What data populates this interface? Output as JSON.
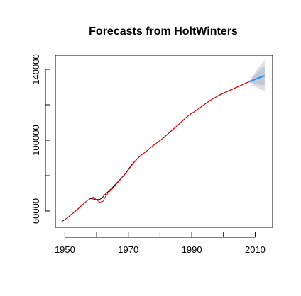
{
  "chart_data": {
    "type": "line",
    "title": "Forecasts from HoltWinters",
    "xlabel": "",
    "ylabel": "",
    "xlim": [
      1947,
      2015.5
    ],
    "ylim": [
      50800,
      148000
    ],
    "x_ticks": [
      1950,
      1960,
      1970,
      1980,
      1990,
      2000,
      2010
    ],
    "x_tick_labels": [
      "1950",
      "",
      "1970",
      "",
      "1990",
      "",
      "2010"
    ],
    "y_ticks": [
      60000,
      80000,
      100000,
      120000,
      140000
    ],
    "y_tick_labels": [
      "60000",
      "",
      "100000",
      "",
      "140000"
    ],
    "grid": false,
    "legend": "none",
    "colors": {
      "observed": "#000000",
      "fitted": "#ff0000",
      "forecast": "#1f8fe6",
      "band80": "#c3c7d6",
      "band95": "#dcdde3"
    },
    "series": [
      {
        "role": "observed",
        "x": [
          1949,
          1950,
          1951,
          1952,
          1953,
          1954,
          1955,
          1956,
          1957,
          1958,
          1959,
          1960,
          1961,
          1962,
          1963,
          1964,
          1965,
          1966,
          1967,
          1968,
          1969,
          1970,
          1971,
          1972,
          1973,
          1974,
          1975,
          1976,
          1977,
          1978,
          1979,
          1980,
          1981,
          1982,
          1983,
          1984,
          1985,
          1986,
          1987,
          1988,
          1989,
          1990,
          1991,
          1992,
          1993,
          1994,
          1995,
          1996,
          1997,
          1998,
          1999,
          2000,
          2001,
          2002,
          2003,
          2004,
          2005,
          2006,
          2007,
          2008
        ],
        "y": [
          54000,
          55200,
          56500,
          58000,
          59500,
          61000,
          62700,
          64300,
          65800,
          67000,
          66800,
          66500,
          66500,
          68000,
          70000,
          71500,
          73300,
          75200,
          77000,
          79000,
          81000,
          83500,
          86000,
          88000,
          89800,
          91500,
          92800,
          94200,
          95800,
          97200,
          98500,
          99800,
          101200,
          102800,
          104400,
          106000,
          107600,
          109200,
          110800,
          112500,
          114000,
          115200,
          116300,
          117600,
          118900,
          120200,
          121500,
          122700,
          123800,
          124800,
          125700,
          126600,
          127400,
          128200,
          129000,
          129800,
          130600,
          131400,
          132200,
          133000
        ]
      },
      {
        "role": "fitted",
        "x": [
          1950,
          1951,
          1952,
          1953,
          1954,
          1955,
          1956,
          1957,
          1958,
          1959,
          1960,
          1961,
          1962,
          1963,
          1964,
          1965,
          1966,
          1967,
          1968,
          1969,
          1970,
          1971,
          1972,
          1973,
          1974,
          1975,
          1976,
          1977,
          1978,
          1979,
          1980,
          1981,
          1982,
          1983,
          1984,
          1985,
          1986,
          1987,
          1988,
          1989,
          1990,
          1991,
          1992,
          1993,
          1994,
          1995,
          1996,
          1997,
          1998,
          1999,
          2000,
          2001,
          2002,
          2003,
          2004,
          2005,
          2006,
          2007,
          2008
        ],
        "y": [
          55100,
          56400,
          57900,
          59400,
          61000,
          62600,
          64200,
          65800,
          67200,
          67800,
          66300,
          65000,
          65500,
          68800,
          70800,
          72600,
          74800,
          76700,
          78800,
          80800,
          83100,
          85600,
          87800,
          89700,
          91400,
          92800,
          94100,
          95700,
          97100,
          98500,
          99800,
          101100,
          102700,
          104300,
          105900,
          107500,
          109100,
          110700,
          112400,
          113900,
          115200,
          116300,
          117500,
          118800,
          120100,
          121400,
          122600,
          123700,
          124700,
          125600,
          126500,
          127300,
          128100,
          128900,
          129700,
          130500,
          131300,
          132100,
          132900
        ]
      },
      {
        "role": "forecast",
        "x": [
          2008,
          2009,
          2010,
          2011,
          2012,
          2013
        ],
        "y": [
          133000,
          133700,
          134400,
          135100,
          135800,
          136500
        ]
      }
    ],
    "intervals": [
      {
        "level": 95,
        "x": [
          2008,
          2009,
          2010,
          2011,
          2012,
          2013
        ],
        "lower": [
          133000,
          131600,
          130400,
          129400,
          128600,
          127900
        ],
        "upper": [
          133000,
          135800,
          138400,
          140800,
          143000,
          145100
        ]
      },
      {
        "level": 80,
        "x": [
          2008,
          2009,
          2010,
          2011,
          2012,
          2013
        ],
        "lower": [
          133000,
          132400,
          131900,
          131500,
          131200,
          131000
        ],
        "upper": [
          133000,
          135000,
          136900,
          138700,
          140400,
          142000
        ]
      }
    ]
  }
}
